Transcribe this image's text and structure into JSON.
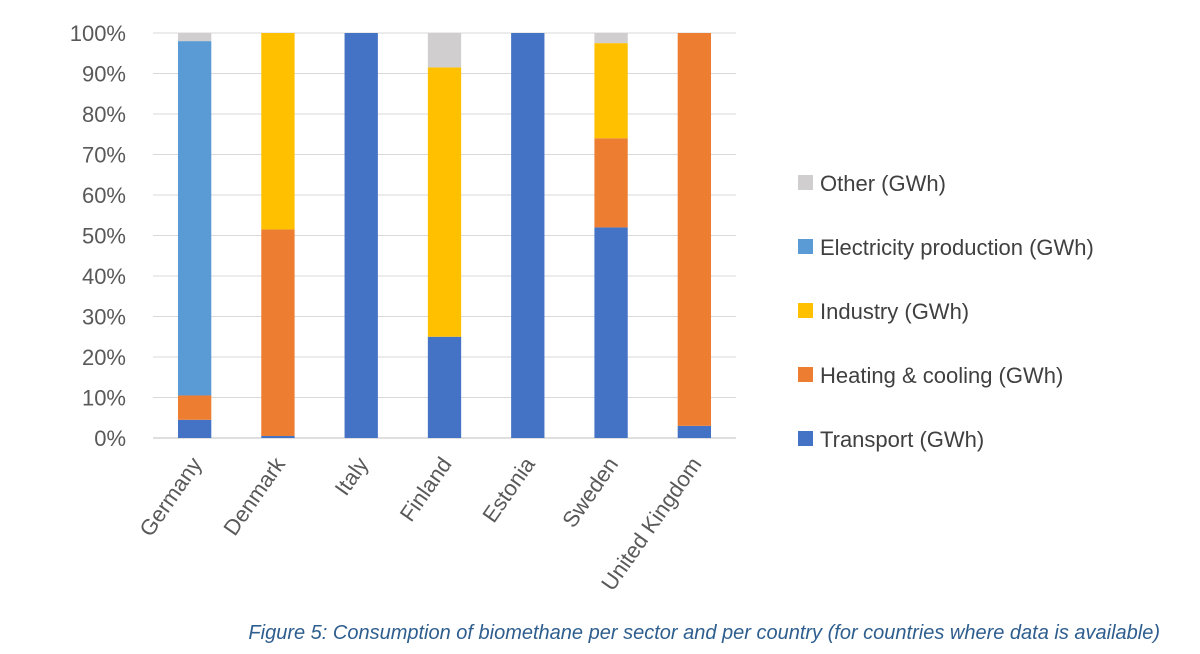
{
  "chart_data": {
    "type": "bar",
    "stacked": true,
    "percent_stacked": true,
    "categories": [
      "Germany",
      "Denmark",
      "Italy",
      "Finland",
      "Estonia",
      "Sweden",
      "United Kingdom"
    ],
    "series": [
      {
        "name": "Transport (GWh)",
        "color": "#4472C4",
        "values": [
          4.5,
          0.5,
          100,
          25,
          100,
          52,
          3
        ]
      },
      {
        "name": "Heating & cooling (GWh)",
        "color": "#ED7D31",
        "values": [
          6,
          51,
          0,
          0,
          0,
          22,
          97
        ]
      },
      {
        "name": "Industry (GWh)",
        "color": "#FFC000",
        "values": [
          0,
          48.5,
          0,
          66.5,
          0,
          23.5,
          0
        ]
      },
      {
        "name": "Electricity production (GWh)",
        "color": "#5B9BD5",
        "values": [
          87.5,
          0,
          0,
          0,
          0,
          0,
          0
        ]
      },
      {
        "name": "Other (GWh)",
        "color": "#D0CECE",
        "values": [
          2,
          0,
          0,
          8.5,
          0,
          2.5,
          0
        ]
      }
    ],
    "y_ticks": [
      "0%",
      "10%",
      "20%",
      "30%",
      "40%",
      "50%",
      "60%",
      "70%",
      "80%",
      "90%",
      "100%"
    ],
    "ylim": [
      0,
      100
    ],
    "grid": true,
    "legend_position": "right"
  },
  "caption": "Figure 5: Consumption of biomethane per sector and per country (for countries where data is available)"
}
